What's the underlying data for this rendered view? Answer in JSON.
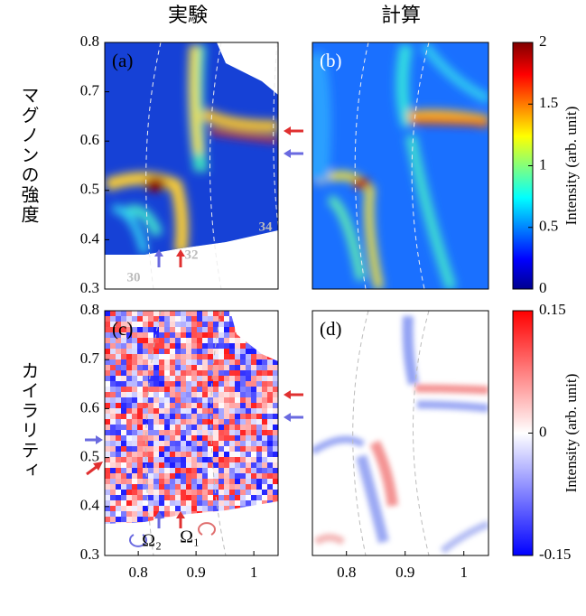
{
  "column_titles": [
    "実験",
    "計算"
  ],
  "row_labels": [
    "マグノンの強度",
    "カイラリティ"
  ],
  "chart_data": [
    {
      "type": "heatmap",
      "title": "(a)",
      "xlim": [
        0.742,
        1.042
      ],
      "ylim": [
        0.3,
        0.8
      ],
      "yticks": [
        0.3,
        0.4,
        0.5,
        0.6,
        0.7,
        0.8
      ],
      "annotations": [
        "30",
        "32",
        "34"
      ],
      "colorbar": {
        "label": "Intensity (arb. unit)",
        "lim": [
          0,
          2
        ],
        "ticks": [
          0,
          0.5,
          1,
          1.5,
          2
        ]
      }
    },
    {
      "type": "heatmap",
      "title": "(b)",
      "xlim": [
        0.742,
        1.042
      ],
      "ylim": [
        0.3,
        0.8
      ]
    },
    {
      "type": "heatmap",
      "title": "(c)",
      "xlim": [
        0.742,
        1.042
      ],
      "ylim": [
        0.3,
        0.8
      ],
      "xticks": [
        0.8,
        0.9,
        1
      ],
      "yticks": [
        0.3,
        0.4,
        0.5,
        0.6,
        0.7,
        0.8
      ],
      "annotations": [
        "Ω₂",
        "Ω₁"
      ],
      "colorbar": {
        "label": "Intensity (arb. unit)",
        "lim": [
          -0.15,
          0.15
        ],
        "ticks": [
          -0.15,
          0,
          0.15
        ]
      }
    },
    {
      "type": "heatmap",
      "title": "(d)",
      "xlim": [
        0.742,
        1.042
      ],
      "ylim": [
        0.3,
        0.8
      ],
      "xticks": [
        0.8,
        0.9,
        1
      ]
    }
  ]
}
